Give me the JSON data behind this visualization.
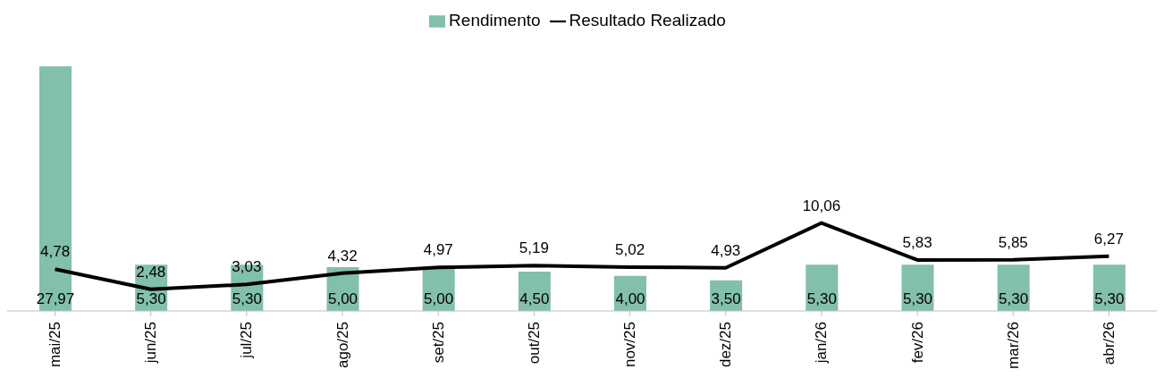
{
  "chart_data": {
    "type": "bar",
    "categories": [
      "mai/25",
      "jun/25",
      "jul/25",
      "ago/25",
      "set/25",
      "out/25",
      "nov/25",
      "dez/25",
      "jan/26",
      "fev/26",
      "mar/26",
      "abr/26"
    ],
    "series": [
      {
        "name": "Rendimento",
        "color": "#82bfad",
        "values": [
          27.97,
          5.3,
          5.3,
          5.0,
          5.0,
          4.5,
          4.0,
          3.5,
          5.3,
          5.3,
          5.3,
          5.3
        ],
        "value_labels": [
          "27,97",
          "5,30",
          "5,30",
          "5,00",
          "5,00",
          "4,50",
          "4,00",
          "3,50",
          "5,30",
          "5,30",
          "5,30",
          "5,30"
        ]
      },
      {
        "name": "Resultado Realizado",
        "type": "line",
        "color": "#000000",
        "values": [
          4.78,
          2.48,
          3.03,
          4.32,
          4.97,
          5.19,
          5.02,
          4.93,
          10.06,
          5.83,
          5.85,
          6.27
        ],
        "value_labels": [
          "4,78",
          "2,48",
          "3,03",
          "4,32",
          "4,97",
          "5,19",
          "5,02",
          "4,93",
          "10,06",
          "5,83",
          "5,85",
          "6,27"
        ]
      }
    ],
    "ylim": [
      0,
      28
    ],
    "tick_labels": "x",
    "legend": "top",
    "marker": "none",
    "line_style": "solid"
  }
}
